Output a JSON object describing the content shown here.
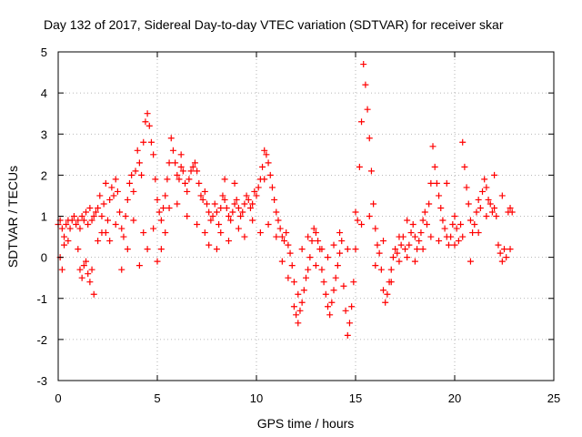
{
  "chart_data": {
    "type": "scatter",
    "title": "Day 132 of 2017, Sidereal Day-to-day VTEC variation (SDTVAR) for receiver skar",
    "xlabel": "GPS time / hours",
    "ylabel": "SDTVAR / TECUs",
    "xlim": [
      0,
      25
    ],
    "ylim": [
      -3,
      5
    ],
    "xticks": [
      "0",
      "5",
      "10",
      "15",
      "20",
      "25"
    ],
    "yticks": [
      "-3",
      "-2",
      "-1",
      "0",
      "1",
      "2",
      "3",
      "4",
      "5"
    ],
    "grid": true,
    "marker": "+",
    "color": "#ff0000",
    "series": [
      {
        "name": "SDTVAR",
        "points": [
          [
            0.0,
            0.8
          ],
          [
            0.1,
            0.9
          ],
          [
            0.2,
            0.7
          ],
          [
            0.3,
            0.5
          ],
          [
            0.4,
            0.8
          ],
          [
            0.5,
            0.9
          ],
          [
            0.6,
            0.7
          ],
          [
            0.7,
            0.9
          ],
          [
            0.8,
            1.0
          ],
          [
            0.9,
            0.8
          ],
          [
            1.0,
            0.9
          ],
          [
            1.1,
            0.7
          ],
          [
            1.2,
            1.0
          ],
          [
            1.3,
            0.9
          ],
          [
            1.4,
            1.1
          ],
          [
            1.5,
            0.8
          ],
          [
            1.6,
            1.2
          ],
          [
            1.7,
            0.9
          ],
          [
            1.8,
            1.0
          ],
          [
            1.9,
            1.1
          ],
          [
            2.0,
            1.2
          ],
          [
            2.1,
            1.5
          ],
          [
            2.2,
            1.0
          ],
          [
            2.3,
            1.3
          ],
          [
            2.4,
            0.6
          ],
          [
            2.5,
            0.9
          ],
          [
            2.6,
            1.4
          ],
          [
            2.7,
            1.7
          ],
          [
            2.8,
            1.5
          ],
          [
            2.9,
            1.9
          ],
          [
            3.0,
            1.6
          ],
          [
            3.1,
            1.1
          ],
          [
            3.2,
            0.7
          ],
          [
            3.3,
            0.5
          ],
          [
            3.4,
            1.0
          ],
          [
            3.5,
            1.4
          ],
          [
            3.6,
            1.8
          ],
          [
            3.7,
            2.0
          ],
          [
            3.8,
            1.6
          ],
          [
            3.9,
            2.1
          ],
          [
            4.0,
            2.6
          ],
          [
            4.1,
            2.3
          ],
          [
            4.2,
            2.0
          ],
          [
            4.3,
            2.8
          ],
          [
            4.4,
            3.3
          ],
          [
            4.5,
            3.5
          ],
          [
            4.6,
            3.2
          ],
          [
            4.7,
            2.8
          ],
          [
            4.8,
            2.5
          ],
          [
            4.9,
            1.9
          ],
          [
            5.0,
            1.4
          ],
          [
            5.1,
            1.1
          ],
          [
            5.2,
            0.9
          ],
          [
            5.3,
            1.2
          ],
          [
            5.4,
            1.5
          ],
          [
            5.5,
            1.9
          ],
          [
            5.6,
            2.3
          ],
          [
            5.7,
            2.9
          ],
          [
            5.8,
            2.6
          ],
          [
            5.9,
            2.3
          ],
          [
            6.0,
            2.0
          ],
          [
            6.1,
            1.9
          ],
          [
            6.2,
            2.2
          ],
          [
            6.3,
            2.1
          ],
          [
            6.4,
            1.8
          ],
          [
            6.5,
            1.6
          ],
          [
            6.6,
            1.9
          ],
          [
            6.7,
            2.1
          ],
          [
            6.8,
            2.2
          ],
          [
            6.9,
            2.3
          ],
          [
            7.0,
            2.1
          ],
          [
            7.1,
            1.8
          ],
          [
            7.2,
            1.5
          ],
          [
            7.3,
            1.4
          ],
          [
            7.4,
            1.6
          ],
          [
            7.5,
            1.3
          ],
          [
            7.6,
            1.1
          ],
          [
            7.7,
            0.9
          ],
          [
            7.8,
            1.0
          ],
          [
            7.9,
            1.3
          ],
          [
            8.0,
            1.1
          ],
          [
            8.1,
            0.8
          ],
          [
            8.2,
            1.2
          ],
          [
            8.3,
            1.5
          ],
          [
            8.4,
            1.4
          ],
          [
            8.5,
            1.2
          ],
          [
            8.6,
            1.0
          ],
          [
            8.7,
            0.9
          ],
          [
            8.8,
            1.1
          ],
          [
            8.9,
            1.3
          ],
          [
            9.0,
            1.4
          ],
          [
            9.1,
            1.2
          ],
          [
            9.2,
            1.0
          ],
          [
            9.3,
            1.1
          ],
          [
            9.4,
            1.3
          ],
          [
            9.5,
            1.5
          ],
          [
            9.6,
            1.4
          ],
          [
            9.7,
            1.2
          ],
          [
            9.8,
            1.3
          ],
          [
            9.9,
            1.6
          ],
          [
            10.0,
            1.5
          ],
          [
            10.1,
            1.7
          ],
          [
            10.2,
            1.9
          ],
          [
            10.3,
            2.2
          ],
          [
            10.4,
            2.6
          ],
          [
            10.5,
            2.5
          ],
          [
            10.6,
            2.3
          ],
          [
            10.7,
            2.0
          ],
          [
            10.8,
            1.7
          ],
          [
            10.9,
            1.4
          ],
          [
            11.0,
            1.1
          ],
          [
            11.1,
            0.9
          ],
          [
            11.2,
            0.7
          ],
          [
            11.3,
            0.5
          ],
          [
            11.4,
            0.4
          ],
          [
            11.5,
            0.6
          ],
          [
            11.6,
            0.3
          ],
          [
            11.7,
            0.1
          ],
          [
            11.8,
            -0.2
          ],
          [
            11.9,
            -0.6
          ],
          [
            12.0,
            -1.4
          ],
          [
            12.1,
            -1.6
          ],
          [
            12.2,
            -1.3
          ],
          [
            12.3,
            -1.1
          ],
          [
            12.4,
            -0.8
          ],
          [
            12.5,
            -0.5
          ],
          [
            12.6,
            -0.3
          ],
          [
            12.7,
            0.0
          ],
          [
            12.8,
            0.4
          ],
          [
            12.9,
            0.7
          ],
          [
            13.0,
            0.6
          ],
          [
            13.1,
            0.4
          ],
          [
            13.2,
            0.2
          ],
          [
            13.3,
            -0.3
          ],
          [
            13.4,
            -0.6
          ],
          [
            13.5,
            -0.9
          ],
          [
            13.6,
            -1.2
          ],
          [
            13.7,
            -1.4
          ],
          [
            13.8,
            -1.1
          ],
          [
            13.9,
            -0.8
          ],
          [
            14.0,
            -0.5
          ],
          [
            14.1,
            -0.2
          ],
          [
            14.2,
            0.1
          ],
          [
            14.3,
            0.4
          ],
          [
            14.4,
            -0.7
          ],
          [
            14.5,
            -1.3
          ],
          [
            14.6,
            -1.9
          ],
          [
            14.7,
            -1.6
          ],
          [
            14.8,
            -1.2
          ],
          [
            14.9,
            -0.6
          ],
          [
            15.0,
            0.2
          ],
          [
            15.1,
            0.9
          ],
          [
            15.2,
            2.2
          ],
          [
            15.3,
            3.3
          ],
          [
            15.4,
            4.7
          ],
          [
            15.5,
            4.2
          ],
          [
            15.6,
            3.6
          ],
          [
            15.7,
            2.9
          ],
          [
            15.8,
            2.1
          ],
          [
            15.9,
            1.3
          ],
          [
            16.0,
            0.7
          ],
          [
            16.1,
            0.3
          ],
          [
            16.2,
            0.1
          ],
          [
            16.3,
            -0.3
          ],
          [
            16.4,
            -0.8
          ],
          [
            16.5,
            -1.1
          ],
          [
            16.6,
            -0.9
          ],
          [
            16.7,
            -0.6
          ],
          [
            16.8,
            -0.3
          ],
          [
            16.9,
            0.0
          ],
          [
            17.0,
            0.2
          ],
          [
            17.1,
            0.1
          ],
          [
            17.2,
            -0.1
          ],
          [
            17.3,
            0.3
          ],
          [
            17.4,
            0.5
          ],
          [
            17.5,
            0.2
          ],
          [
            17.6,
            0.0
          ],
          [
            17.7,
            0.3
          ],
          [
            17.8,
            0.6
          ],
          [
            17.9,
            0.8
          ],
          [
            18.0,
            0.5
          ],
          [
            18.1,
            0.2
          ],
          [
            18.2,
            0.4
          ],
          [
            18.3,
            0.6
          ],
          [
            18.4,
            0.9
          ],
          [
            18.5,
            1.1
          ],
          [
            18.6,
            0.8
          ],
          [
            18.7,
            1.3
          ],
          [
            18.8,
            1.8
          ],
          [
            18.9,
            2.7
          ],
          [
            19.0,
            2.2
          ],
          [
            19.1,
            1.8
          ],
          [
            19.2,
            1.5
          ],
          [
            19.3,
            1.2
          ],
          [
            19.4,
            0.9
          ],
          [
            19.5,
            0.7
          ],
          [
            19.6,
            0.5
          ],
          [
            19.7,
            0.3
          ],
          [
            19.8,
            0.5
          ],
          [
            19.9,
            0.8
          ],
          [
            20.0,
            1.0
          ],
          [
            20.1,
            0.7
          ],
          [
            20.2,
            0.4
          ],
          [
            20.3,
            0.8
          ],
          [
            20.4,
            2.8
          ],
          [
            20.5,
            2.2
          ],
          [
            20.6,
            1.7
          ],
          [
            20.7,
            1.3
          ],
          [
            20.8,
            0.9
          ],
          [
            20.9,
            0.6
          ],
          [
            21.0,
            0.8
          ],
          [
            21.1,
            1.1
          ],
          [
            21.2,
            1.4
          ],
          [
            21.3,
            1.2
          ],
          [
            21.4,
            1.6
          ],
          [
            21.5,
            1.9
          ],
          [
            21.6,
            1.7
          ],
          [
            21.7,
            1.4
          ],
          [
            21.8,
            1.3
          ],
          [
            21.9,
            1.1
          ],
          [
            22.0,
            1.2
          ],
          [
            22.1,
            1.0
          ],
          [
            22.2,
            0.3
          ],
          [
            22.3,
            0.1
          ],
          [
            22.4,
            -0.1
          ],
          [
            22.5,
            0.2
          ],
          [
            22.6,
            0.0
          ],
          [
            22.7,
            1.1
          ],
          [
            22.8,
            1.2
          ],
          [
            22.9,
            1.1
          ],
          [
            0.1,
            0.0
          ],
          [
            0.2,
            -0.3
          ],
          [
            0.3,
            0.3
          ],
          [
            0.5,
            0.4
          ],
          [
            1.0,
            0.2
          ],
          [
            1.1,
            -0.3
          ],
          [
            1.2,
            -0.5
          ],
          [
            1.3,
            -0.2
          ],
          [
            1.4,
            -0.1
          ],
          [
            1.5,
            -0.4
          ],
          [
            1.6,
            -0.6
          ],
          [
            1.7,
            -0.3
          ],
          [
            1.8,
            -0.9
          ],
          [
            2.0,
            0.4
          ],
          [
            2.2,
            0.6
          ],
          [
            2.4,
            1.8
          ],
          [
            2.6,
            0.4
          ],
          [
            2.9,
            0.8
          ],
          [
            3.2,
            -0.3
          ],
          [
            3.5,
            0.2
          ],
          [
            3.8,
            0.9
          ],
          [
            4.1,
            -0.2
          ],
          [
            4.3,
            0.6
          ],
          [
            4.5,
            0.2
          ],
          [
            4.8,
            0.7
          ],
          [
            5.0,
            -0.1
          ],
          [
            5.2,
            0.2
          ],
          [
            5.4,
            0.6
          ],
          [
            5.6,
            1.2
          ],
          [
            6.0,
            1.3
          ],
          [
            6.5,
            1.0
          ],
          [
            7.0,
            0.8
          ],
          [
            7.4,
            0.6
          ],
          [
            7.6,
            0.3
          ],
          [
            8.0,
            0.2
          ],
          [
            8.2,
            0.6
          ],
          [
            8.6,
            0.4
          ],
          [
            8.9,
            1.8
          ],
          [
            9.1,
            0.7
          ],
          [
            9.4,
            0.5
          ],
          [
            9.8,
            0.9
          ],
          [
            10.2,
            0.6
          ],
          [
            10.6,
            0.8
          ],
          [
            11.0,
            0.5
          ],
          [
            11.3,
            -0.1
          ],
          [
            11.6,
            -0.5
          ],
          [
            11.9,
            -1.2
          ],
          [
            12.1,
            -0.9
          ],
          [
            12.3,
            0.2
          ],
          [
            12.6,
            0.5
          ],
          [
            13.0,
            -0.2
          ],
          [
            13.3,
            0.2
          ],
          [
            13.6,
            0.0
          ],
          [
            13.9,
            0.3
          ],
          [
            14.2,
            0.6
          ],
          [
            14.6,
            0.2
          ],
          [
            15.0,
            1.1
          ],
          [
            15.3,
            0.8
          ],
          [
            15.7,
            1.0
          ],
          [
            16.0,
            -0.2
          ],
          [
            16.4,
            0.4
          ],
          [
            16.8,
            -0.6
          ],
          [
            17.2,
            0.5
          ],
          [
            17.6,
            0.9
          ],
          [
            18.0,
            -0.1
          ],
          [
            18.4,
            0.2
          ],
          [
            18.8,
            0.5
          ],
          [
            19.2,
            0.4
          ],
          [
            19.6,
            1.8
          ],
          [
            20.0,
            0.3
          ],
          [
            20.4,
            0.5
          ],
          [
            20.8,
            -0.1
          ],
          [
            21.2,
            0.6
          ],
          [
            21.6,
            1.0
          ],
          [
            22.0,
            2.0
          ],
          [
            22.4,
            1.5
          ],
          [
            22.8,
            0.2
          ],
          [
            8.4,
            1.9
          ],
          [
            10.4,
            1.9
          ],
          [
            6.2,
            2.5
          ]
        ]
      }
    ]
  }
}
